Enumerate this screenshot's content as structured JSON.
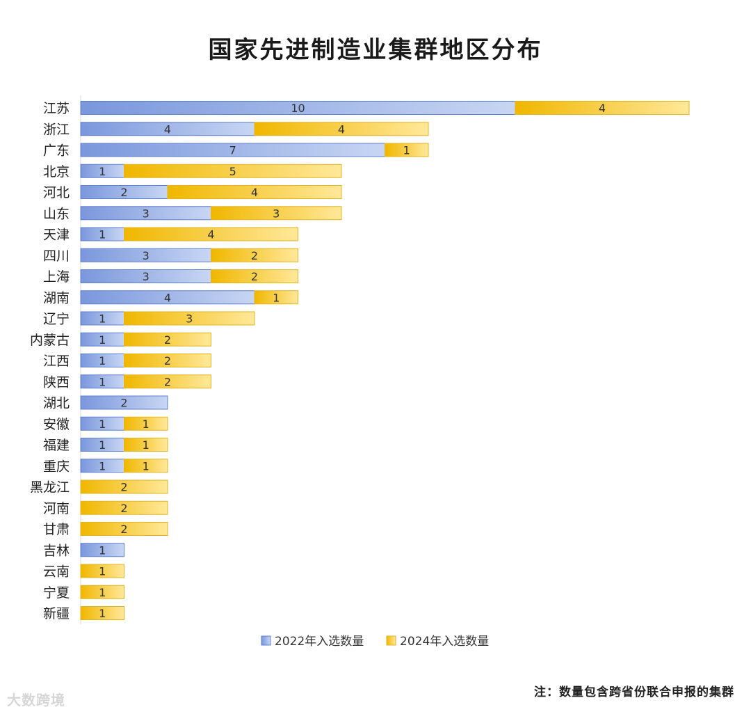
{
  "page": {
    "title": "国家先进制造业集群地区分布",
    "footnote": "注：数量包含跨省份联合申报的集群",
    "watermark": "大数跨境"
  },
  "colors": {
    "series_2022_dark": "#7a97dc",
    "series_2022_light": "#c8d6f3",
    "series_2022_border": "#5f7fcf",
    "series_2024_dark": "#f0b700",
    "series_2024_light": "#ffe899",
    "series_2024_border": "#e0b422",
    "label_text": "#333333",
    "axis_line": "#d9d9d9"
  },
  "chart_data": {
    "type": "bar",
    "orientation": "horizontal",
    "stacked": true,
    "title": "国家先进制造业集群地区分布",
    "categories": [
      "江苏",
      "浙江",
      "广东",
      "北京",
      "河北",
      "山东",
      "天津",
      "四川",
      "上海",
      "湖南",
      "辽宁",
      "内蒙古",
      "江西",
      "陕西",
      "湖北",
      "安徽",
      "福建",
      "重庆",
      "黑龙江",
      "河南",
      "甘肃",
      "吉林",
      "云南",
      "宁夏",
      "新疆"
    ],
    "series": [
      {
        "name": "2022年入选数量",
        "values": [
          10,
          4,
          7,
          1,
          2,
          3,
          1,
          3,
          3,
          4,
          1,
          1,
          1,
          1,
          2,
          1,
          1,
          1,
          0,
          0,
          0,
          1,
          0,
          0,
          0
        ]
      },
      {
        "name": "2024年入选数量",
        "values": [
          4,
          4,
          1,
          5,
          4,
          3,
          4,
          2,
          2,
          1,
          3,
          2,
          2,
          2,
          0,
          1,
          1,
          1,
          2,
          2,
          2,
          0,
          1,
          1,
          1
        ]
      }
    ],
    "xlim": [
      0,
      14
    ],
    "xlabel": "",
    "ylabel": "",
    "grid": false,
    "legend_position": "bottom"
  }
}
